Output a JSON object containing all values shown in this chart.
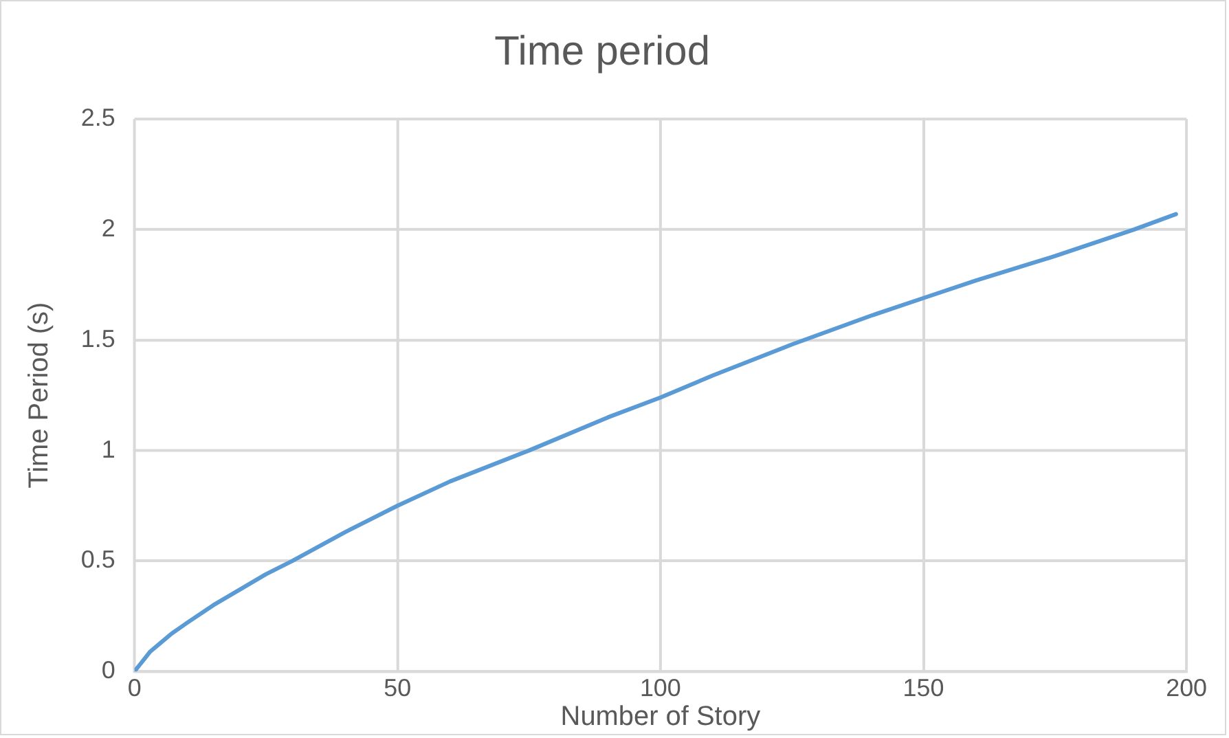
{
  "chart_data": {
    "type": "line",
    "title": "Time period",
    "xlabel": "Number of Story",
    "ylabel": "Time Period (s)",
    "x": [
      0,
      1,
      2,
      3,
      5,
      7,
      10,
      15,
      20,
      25,
      30,
      40,
      50,
      60,
      75,
      90,
      100,
      110,
      125,
      140,
      150,
      160,
      175,
      190,
      198
    ],
    "series": [
      {
        "color": "#5b9bd5",
        "values": [
          0,
          0.03,
          0.06,
          0.09,
          0.13,
          0.17,
          0.22,
          0.3,
          0.37,
          0.44,
          0.5,
          0.63,
          0.75,
          0.86,
          1.0,
          1.15,
          1.24,
          1.34,
          1.48,
          1.61,
          1.69,
          1.77,
          1.88,
          2.0,
          2.07
        ]
      }
    ],
    "xlim": [
      0,
      200
    ],
    "xticks": [
      0,
      50,
      100,
      150,
      200
    ],
    "ylim": [
      0,
      2.5
    ],
    "yticks": [
      0,
      0.5,
      1,
      1.5,
      2,
      2.5
    ],
    "grid": true,
    "legend": false,
    "marker": "none",
    "line_style": "solid"
  }
}
